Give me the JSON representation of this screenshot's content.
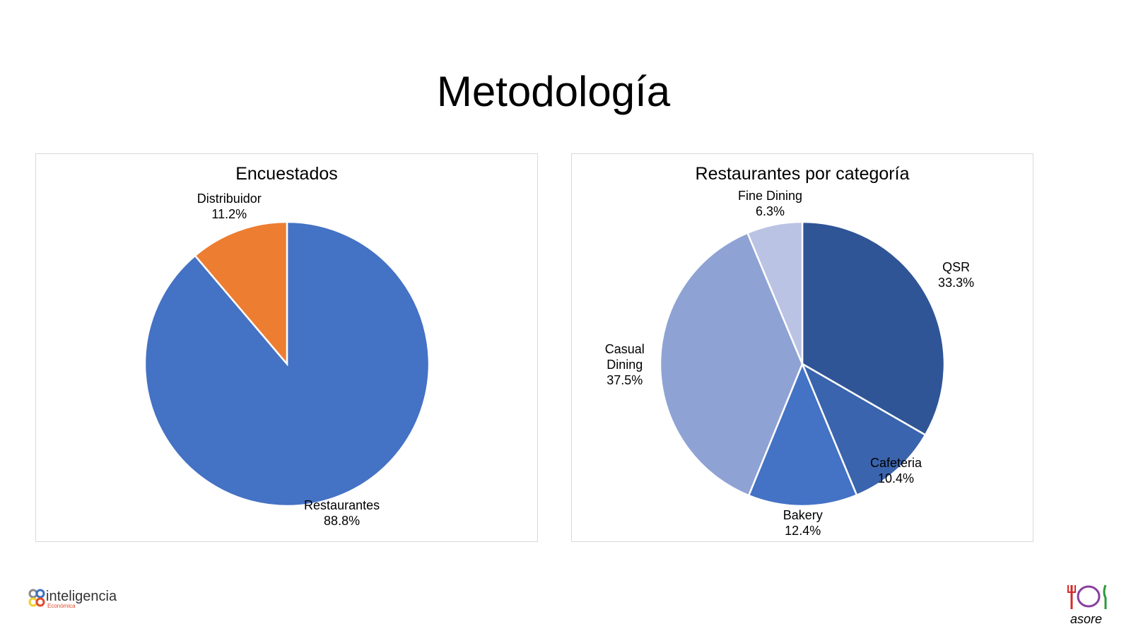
{
  "page": {
    "title": "Metodología"
  },
  "logos": {
    "left": "inteligencia Económica",
    "right": "asore"
  },
  "chart_data": [
    {
      "type": "pie",
      "title": "Encuestados",
      "start": "top, clockwise",
      "slices": [
        {
          "label": "Restaurantes",
          "value": 88.8,
          "display": "88.8%",
          "color": "#4472C4"
        },
        {
          "label": "Distribuidor",
          "value": 11.2,
          "display": "11.2%",
          "color": "#ED7D31"
        }
      ]
    },
    {
      "type": "pie",
      "title": "Restaurantes por categoría",
      "start": "top, clockwise",
      "slices": [
        {
          "label": "QSR",
          "value": 33.3,
          "display": "33.3%",
          "color": "#2F5597"
        },
        {
          "label": "Cafeteria",
          "value": 10.4,
          "display": "10.4%",
          "color": "#3A64AD"
        },
        {
          "label": "Bakery",
          "value": 12.4,
          "display": "12.4%",
          "color": "#4472C4"
        },
        {
          "label": "Casual Dining",
          "value": 37.5,
          "display": "37.5%",
          "color": "#8FA2D4"
        },
        {
          "label": "Fine Dining",
          "value": 6.3,
          "display": "6.3%",
          "color": "#BAC3E3"
        }
      ]
    }
  ]
}
